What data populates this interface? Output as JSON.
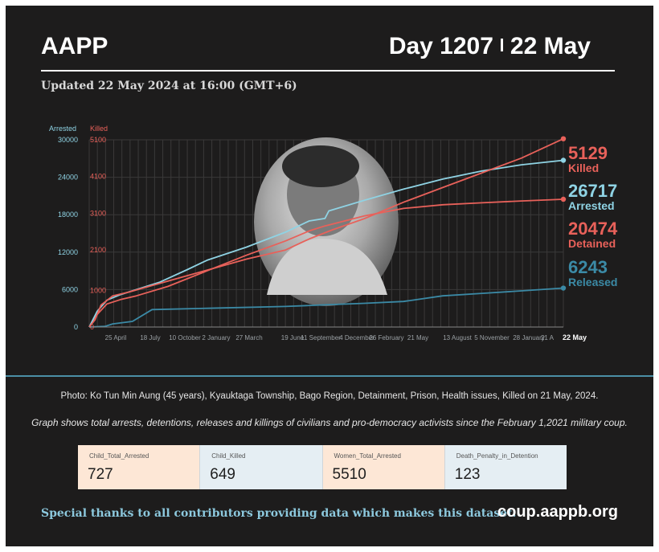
{
  "header": {
    "org": "AAPP",
    "day": "Day 1207",
    "date": "22 May",
    "updated": "Updated 22 May 2024 at 16:00 (GMT+6)"
  },
  "chart_data": {
    "type": "line",
    "left_axis": {
      "label": "Arrested",
      "ticks": [
        0,
        6000,
        12000,
        18000,
        24000,
        30000
      ],
      "range": [
        0,
        30000
      ]
    },
    "right_axis": {
      "label": "Killed",
      "ticks": [
        0,
        1000,
        2100,
        3100,
        4100,
        5100
      ],
      "range": [
        0,
        5100
      ]
    },
    "x_tick_labels": [
      "25 April",
      "18 July",
      "10 October",
      "2 January",
      "27 March",
      "19 June",
      "11 September",
      "4 December",
      "26 February",
      "21 May",
      "13 August",
      "5 November",
      "28 January",
      "21 A",
      "22 May"
    ],
    "x_range": [
      0,
      1207
    ],
    "grid": true,
    "series": [
      {
        "name": "Killed",
        "axis": "right",
        "color": "#e8615a",
        "final_value": "5129",
        "x": [
          0,
          15,
          30,
          60,
          100,
          150,
          200,
          300,
          400,
          500,
          560,
          620,
          700,
          800,
          900,
          1000,
          1100,
          1207
        ],
        "y": [
          0,
          200,
          600,
          850,
          950,
          1100,
          1250,
          1550,
          1850,
          2100,
          2400,
          2650,
          2950,
          3400,
          3800,
          4200,
          4600,
          5129
        ]
      },
      {
        "name": "Arrested",
        "axis": "left",
        "color": "#8fd3e4",
        "final_value": "26717",
        "x": [
          0,
          20,
          45,
          80,
          120,
          180,
          250,
          300,
          400,
          500,
          560,
          600,
          610,
          700,
          800,
          900,
          1000,
          1100,
          1207
        ],
        "y": [
          0,
          2500,
          4300,
          5200,
          6000,
          7200,
          9200,
          10700,
          12800,
          15200,
          17000,
          17400,
          18600,
          20300,
          22100,
          23700,
          25000,
          26000,
          26717
        ]
      },
      {
        "name": "Detained",
        "axis": "left",
        "color": "#e8615a",
        "final_value": "20474",
        "x": [
          0,
          20,
          45,
          80,
          120,
          200,
          300,
          400,
          500,
          560,
          600,
          700,
          800,
          900,
          1000,
          1100,
          1207
        ],
        "y": [
          0,
          2000,
          3700,
          4400,
          5000,
          6500,
          9000,
          11500,
          13800,
          15400,
          16200,
          17800,
          19000,
          19600,
          19900,
          20200,
          20474
        ]
      },
      {
        "name": "Released",
        "axis": "left",
        "color": "#3b8aa6",
        "final_value": "6243",
        "x": [
          0,
          40,
          60,
          110,
          160,
          300,
          500,
          600,
          700,
          800,
          900,
          1000,
          1100,
          1207
        ],
        "y": [
          0,
          100,
          500,
          900,
          2800,
          3000,
          3300,
          3550,
          3800,
          4100,
          5000,
          5400,
          5800,
          6243
        ]
      }
    ]
  },
  "photo_caption": "Photo: Ko Tun Min Aung (45 years), Kyauktaga Township, Bago Region, Detainment, Prison, Health issues, Killed on 21 May, 2024.",
  "graph_caption": "Graph shows total arrests, detentions, releases and killings of civilians and pro-democracy activists since the February 1,2021 military coup.",
  "stats": [
    {
      "label": "Child_Total_Arrested",
      "value": "727",
      "bg": "#fde7d6"
    },
    {
      "label": "Child_Killed",
      "value": "649",
      "bg": "#e5eef3"
    },
    {
      "label": "Women_Total_Arrested",
      "value": "5510",
      "bg": "#fde7d6"
    },
    {
      "label": "Death_Penalty_in_Detention",
      "value": "123",
      "bg": "#e5eef3"
    }
  ],
  "footer": {
    "thanks": "Special thanks to all contributors providing data which makes this dataset.",
    "site": "coup.aappb.org"
  }
}
